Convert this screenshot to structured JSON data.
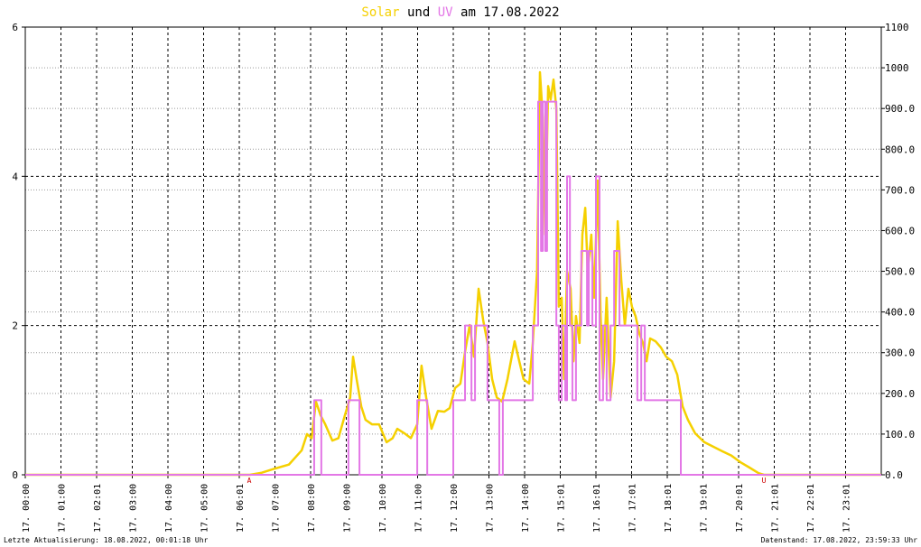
{
  "chart_data": {
    "type": "line",
    "title_connector": "und",
    "title_date": "am 17.08.2022",
    "footer_left": "Letzte Aktualisierung: 18.08.2022, 00:01:18 Uhr",
    "footer_right": "Datenstand: 17.08.2022, 23:59:33 Uhr",
    "xlim": [
      0,
      24
    ],
    "xticks": [
      {
        "value": 0,
        "label": "17. 00:00"
      },
      {
        "value": 1,
        "label": "17. 01:00"
      },
      {
        "value": 2,
        "label": "17. 02:01"
      },
      {
        "value": 3,
        "label": "17. 03:00"
      },
      {
        "value": 4,
        "label": "17. 04:00"
      },
      {
        "value": 5,
        "label": "17. 05:00"
      },
      {
        "value": 6,
        "label": "17. 06:01"
      },
      {
        "value": 7,
        "label": "17. 07:00"
      },
      {
        "value": 8,
        "label": "17. 08:00"
      },
      {
        "value": 9,
        "label": "17. 09:00"
      },
      {
        "value": 10,
        "label": "17. 10:00"
      },
      {
        "value": 11,
        "label": "17. 11:00"
      },
      {
        "value": 12,
        "label": "17. 12:00"
      },
      {
        "value": 13,
        "label": "17. 13:00"
      },
      {
        "value": 14,
        "label": "17. 14:00"
      },
      {
        "value": 15,
        "label": "17. 15:01"
      },
      {
        "value": 16,
        "label": "17. 16:01"
      },
      {
        "value": 17,
        "label": "17. 17:01"
      },
      {
        "value": 18,
        "label": "17. 18:01"
      },
      {
        "value": 19,
        "label": "17. 19:01"
      },
      {
        "value": 20,
        "label": "17. 20:01"
      },
      {
        "value": 21,
        "label": "17. 21:01"
      },
      {
        "value": 22,
        "label": "17. 22:01"
      },
      {
        "value": 23,
        "label": "17. 23:01"
      }
    ],
    "ylim": [
      0,
      6
    ],
    "yticks": [
      0,
      2,
      4,
      6
    ],
    "y2lim": [
      0,
      1100
    ],
    "y2ticks": [
      {
        "value": 0,
        "label": "0.0"
      },
      {
        "value": 100,
        "label": "100.0"
      },
      {
        "value": 200,
        "label": "200.0"
      },
      {
        "value": 300,
        "label": "300.0"
      },
      {
        "value": 400,
        "label": "400.0"
      },
      {
        "value": 500,
        "label": "500.0"
      },
      {
        "value": 600,
        "label": "600.0"
      },
      {
        "value": 700,
        "label": "700.0"
      },
      {
        "value": 800,
        "label": "800.0"
      },
      {
        "value": 900,
        "label": "900.0"
      },
      1000,
      1100
    ],
    "grid": true,
    "annotations": [
      {
        "text": "A",
        "x": 6.28
      },
      {
        "text": "U",
        "x": 20.71
      }
    ],
    "series": [
      {
        "name": "Solar",
        "color": "#f5d000",
        "axis": "y2",
        "x": [
          0,
          6.3,
          6.63,
          6.99,
          7.39,
          7.75,
          7.9,
          8.03,
          8.15,
          8.28,
          8.41,
          8.61,
          8.78,
          8.96,
          9.11,
          9.19,
          9.29,
          9.42,
          9.54,
          9.72,
          9.92,
          10.13,
          10.3,
          10.43,
          10.63,
          10.81,
          10.99,
          11.11,
          11.24,
          11.39,
          11.57,
          11.75,
          11.9,
          12.05,
          12.2,
          12.33,
          12.46,
          12.58,
          12.71,
          12.84,
          12.96,
          13.09,
          13.22,
          13.37,
          13.52,
          13.72,
          13.85,
          13.97,
          14.13,
          14.23,
          14.35,
          14.43,
          14.51,
          14.58,
          14.66,
          14.73,
          14.81,
          14.89,
          14.96,
          15.04,
          15.11,
          15.19,
          15.29,
          15.37,
          15.44,
          15.54,
          15.62,
          15.7,
          15.77,
          15.87,
          15.95,
          16.05,
          16.13,
          16.2,
          16.3,
          16.41,
          16.51,
          16.61,
          16.71,
          16.81,
          16.91,
          17.01,
          17.11,
          17.22,
          17.32,
          17.42,
          17.52,
          17.67,
          17.82,
          17.97,
          18.13,
          18.28,
          18.43,
          18.58,
          18.78,
          19.04,
          19.29,
          19.54,
          19.8,
          20.05,
          20.3,
          20.56,
          20.71,
          24
        ],
        "values": [
          0,
          0,
          5,
          15,
          25,
          60,
          100,
          90,
          180,
          146,
          124,
          84,
          90,
          146,
          190,
          290,
          235,
          168,
          135,
          124,
          124,
          80,
          90,
          113,
          102,
          90,
          124,
          268,
          190,
          113,
          157,
          155,
          164,
          213,
          224,
          302,
          368,
          290,
          457,
          379,
          324,
          235,
          190,
          180,
          235,
          328,
          279,
          235,
          224,
          324,
          501,
          989,
          878,
          590,
          955,
          922,
          971,
          900,
          413,
          435,
          235,
          501,
          457,
          279,
          390,
          324,
          590,
          656,
          501,
          590,
          435,
          723,
          390,
          235,
          435,
          190,
          279,
          623,
          479,
          368,
          457,
          413,
          390,
          346,
          324,
          279,
          335,
          328,
          313,
          290,
          279,
          246,
          168,
          135,
          102,
          80,
          69,
          58,
          47,
          31,
          18,
          4,
          0,
          0
        ]
      },
      {
        "name": "UV",
        "color": "#e377e6",
        "step": "after",
        "x": [
          0,
          8.1,
          8.3,
          9.06,
          9.37,
          10.99,
          11.27,
          12.0,
          12.33,
          12.51,
          12.61,
          12.96,
          13.29,
          13.39,
          14.23,
          14.38,
          14.46,
          14.51,
          14.58,
          14.63,
          14.89,
          14.96,
          15.04,
          15.14,
          15.19,
          15.27,
          15.34,
          15.44,
          15.59,
          15.75,
          15.8,
          15.9,
          16.0,
          16.1,
          16.2,
          16.3,
          16.41,
          16.51,
          16.66,
          17.16,
          17.27,
          17.37,
          18.38,
          24
        ],
        "values": [
          0,
          1,
          0,
          1,
          0,
          1,
          0,
          1,
          2,
          1,
          2,
          1,
          0,
          1,
          2,
          5,
          3,
          5,
          3,
          5,
          2,
          1,
          2,
          1,
          4,
          2,
          1,
          2,
          3,
          2,
          3,
          2,
          4,
          1,
          2,
          1,
          2,
          3,
          2,
          1,
          2,
          1,
          0,
          0
        ]
      }
    ]
  }
}
